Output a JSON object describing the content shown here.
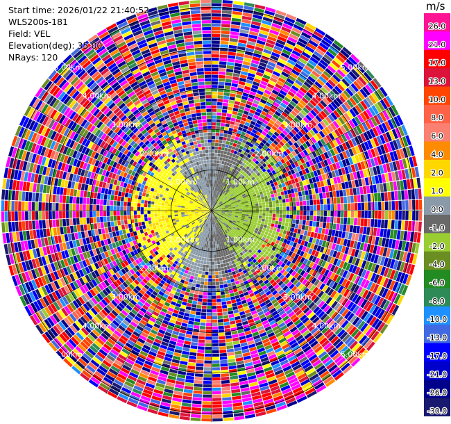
{
  "header": {
    "start_time": "Start time: 2026/01/22 21:40:52",
    "instrument": "WLS200s-181",
    "field": "Field: VEL",
    "elevation": "Elevation(deg): 35.00",
    "nrays": "NRays: 120"
  },
  "colorbar": {
    "unit": "m/s",
    "ticks": [
      "26.0",
      "21.0",
      "17.0",
      "13.0",
      "10.0",
      "8.0",
      "6.0",
      "4.0",
      "2.0",
      "1.0",
      "0.0",
      "-1.0",
      "-2.0",
      "-4.0",
      "-6.0",
      "-8.0",
      "-10.0",
      "-13.0",
      "-17.0",
      "-21.0",
      "-26.0",
      "-30.0"
    ],
    "colors": [
      "#ff1493",
      "#ff00ff",
      "#ff0000",
      "#dc143c",
      "#ff4500",
      "#ff6347",
      "#fa8072",
      "#ff8c00",
      "#ffd700",
      "#ffff00",
      "#8a9aa8",
      "#696969",
      "#9acd32",
      "#6b8e23",
      "#228b22",
      "#2e8b57",
      "#1e90ff",
      "#4169e1",
      "#0000ff",
      "#0000cd",
      "#00008b",
      "#191970"
    ]
  },
  "chart_data": {
    "type": "heatmap",
    "title": "",
    "ring_labels": [
      "1.00km",
      "2.00km",
      "3.00km",
      "4.00km",
      "5.00km"
    ],
    "range_km": [
      0,
      5.2
    ],
    "nrays": 120,
    "elevation_deg": 35.0,
    "velocity_range": [
      -30,
      26
    ],
    "grid": true,
    "rings_km": [
      1,
      2,
      3,
      4,
      5
    ]
  }
}
